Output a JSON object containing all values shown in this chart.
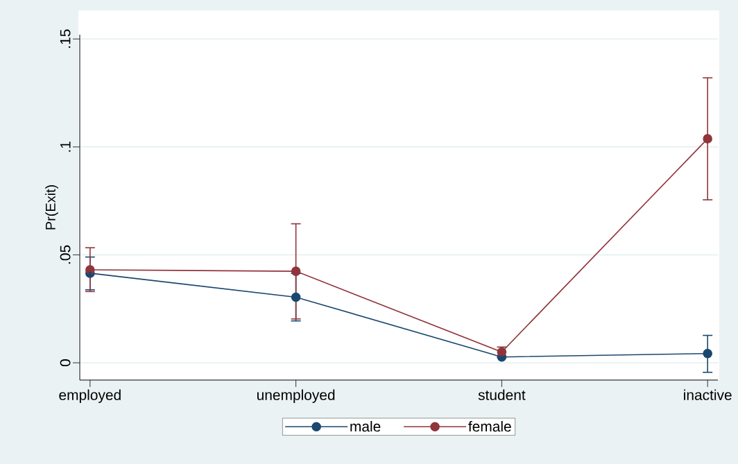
{
  "chart_data": {
    "type": "line",
    "ylabel": "Pr(Exit)",
    "categories": [
      "employed",
      "unemployed",
      "student",
      "inactive"
    ],
    "series": [
      {
        "name": "male",
        "color": "#1a476f",
        "values": [
          0.0415,
          0.0304,
          0.0027,
          0.0043
        ],
        "errors": [
          [
            0.0338,
            0.049
          ],
          [
            0.0194,
            0.0414
          ],
          null,
          [
            -0.0044,
            0.0127
          ]
        ]
      },
      {
        "name": "female",
        "color": "#90353b",
        "values": [
          0.0431,
          0.0424,
          0.005,
          0.1038
        ],
        "errors": [
          [
            0.033,
            0.0533
          ],
          [
            0.0203,
            0.0644
          ],
          [
            0.0027,
            0.0073
          ],
          [
            0.0755,
            0.132
          ]
        ]
      }
    ],
    "ylim": [
      -0.008,
      0.152
    ],
    "yticks": [
      0,
      {
        "value": 0.05,
        "label": ".05"
      },
      {
        "value": 0.1,
        "label": ".1"
      },
      {
        "value": 0.15,
        "label": ".15"
      }
    ],
    "grid": "y",
    "legend": "bottom",
    "marker": "circle",
    "line_style": "solid"
  }
}
